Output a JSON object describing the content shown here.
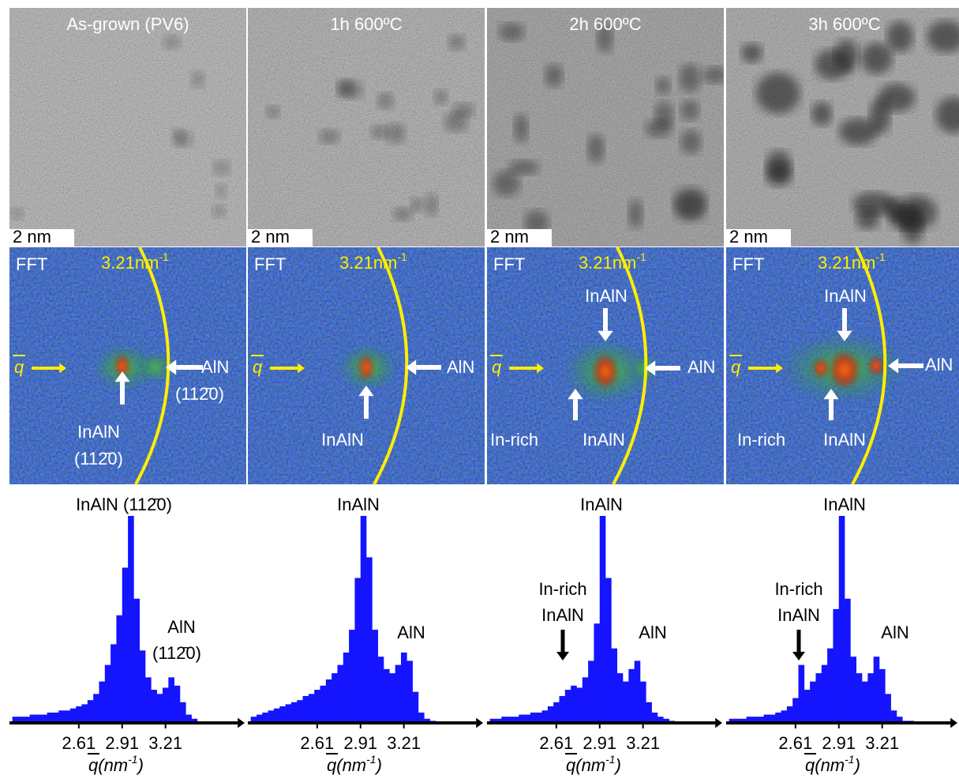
{
  "panels": [
    {
      "title": "As-grown (PV6)",
      "scale_bar": "2 nm",
      "fft_label": "FFT",
      "ring_label": "3.21nm",
      "ring_label_sup": "-1",
      "q_label": "q",
      "fft_annotations": [
        "AlN",
        "(112̄0)",
        "InAlN",
        "(112̄0)"
      ]
    },
    {
      "title": "1h 600ºC",
      "scale_bar": "2 nm",
      "fft_label": "FFT",
      "ring_label": "3.21nm",
      "ring_label_sup": "-1",
      "q_label": "q",
      "fft_annotations": [
        "AlN",
        "InAlN"
      ]
    },
    {
      "title": "2h 600ºC",
      "scale_bar": "2 nm",
      "fft_label": "FFT",
      "ring_label": "3.21nm",
      "ring_label_sup": "-1",
      "q_label": "q",
      "fft_annotations": [
        "InAlN",
        "AlN",
        "In-rich",
        "InAlN"
      ]
    },
    {
      "title": "3h 600ºC",
      "scale_bar": "2 nm",
      "fft_label": "FFT",
      "ring_label": "3.21nm",
      "ring_label_sup": "-1",
      "q_label": "q",
      "fft_annotations": [
        "InAlN",
        "AlN",
        "In-rich",
        "InAlN"
      ]
    }
  ],
  "chart_data": [
    {
      "type": "histogram",
      "color": "#1414ff",
      "annotations": [
        "InAlN (112̄0)",
        "AlN",
        "(112̄0)"
      ],
      "xlabel": [
        "q",
        "(nm",
        "-1",
        ")"
      ],
      "xlim": [
        2.13,
        3.72
      ],
      "xticks": [
        2.61,
        2.91,
        3.21
      ],
      "ylim": [
        0,
        100
      ],
      "bins": [
        2.15,
        2.19,
        2.23,
        2.27,
        2.31,
        2.35,
        2.39,
        2.43,
        2.47,
        2.51,
        2.55,
        2.59,
        2.63,
        2.67,
        2.71,
        2.75,
        2.79,
        2.83,
        2.87,
        2.91,
        2.95,
        2.99,
        3.03,
        3.07,
        3.11,
        3.15,
        3.19,
        3.23,
        3.27,
        3.31,
        3.35,
        3.39,
        3.43
      ],
      "values": [
        3,
        3,
        3,
        4,
        4,
        4,
        5,
        5,
        6,
        6,
        7,
        8,
        9,
        11,
        14,
        20,
        28,
        38,
        52,
        75,
        100,
        60,
        35,
        22,
        16,
        14,
        17,
        22,
        18,
        10,
        4,
        2
      ]
    },
    {
      "type": "histogram",
      "color": "#1414ff",
      "annotations": [
        "InAlN",
        "AlN"
      ],
      "xlabel": [
        "q",
        "(nm",
        "-1",
        ")"
      ],
      "xlim": [
        2.13,
        3.72
      ],
      "xticks": [
        2.61,
        2.91,
        3.21
      ],
      "ylim": [
        0,
        100
      ],
      "bins": [
        2.15,
        2.19,
        2.23,
        2.27,
        2.31,
        2.35,
        2.39,
        2.43,
        2.47,
        2.51,
        2.55,
        2.59,
        2.63,
        2.67,
        2.71,
        2.75,
        2.79,
        2.83,
        2.87,
        2.91,
        2.95,
        2.99,
        3.03,
        3.07,
        3.11,
        3.15,
        3.19,
        3.23,
        3.27,
        3.31,
        3.35,
        3.39,
        3.43
      ],
      "values": [
        3,
        4,
        5,
        6,
        7,
        8,
        9,
        10,
        11,
        13,
        14,
        16,
        18,
        21,
        24,
        28,
        34,
        45,
        70,
        100,
        80,
        45,
        32,
        26,
        24,
        28,
        34,
        30,
        15,
        5,
        2,
        1
      ]
    },
    {
      "type": "histogram",
      "color": "#1414ff",
      "annotations": [
        "InAlN",
        "In-rich",
        "InAlN",
        "AlN"
      ],
      "xlabel": [
        "q",
        "(nm",
        "-1",
        ")"
      ],
      "xlim": [
        2.13,
        3.72
      ],
      "xticks": [
        2.61,
        2.91,
        3.21
      ],
      "ylim": [
        0,
        100
      ],
      "bins": [
        2.15,
        2.19,
        2.23,
        2.27,
        2.31,
        2.35,
        2.39,
        2.43,
        2.47,
        2.51,
        2.55,
        2.59,
        2.63,
        2.67,
        2.71,
        2.75,
        2.79,
        2.83,
        2.87,
        2.91,
        2.95,
        2.99,
        3.03,
        3.07,
        3.11,
        3.15,
        3.19,
        3.23,
        3.27,
        3.31,
        3.35,
        3.39,
        3.43
      ],
      "values": [
        2,
        2,
        3,
        3,
        3,
        4,
        4,
        5,
        5,
        6,
        8,
        10,
        13,
        16,
        18,
        17,
        22,
        30,
        48,
        100,
        70,
        36,
        24,
        20,
        26,
        30,
        20,
        10,
        5,
        3,
        2,
        1
      ]
    },
    {
      "type": "histogram",
      "color": "#1414ff",
      "annotations": [
        "InAlN",
        "In-rich",
        "InAlN",
        "AlN"
      ],
      "xlabel": [
        "q",
        "(nm",
        "-1",
        ")"
      ],
      "xlim": [
        2.13,
        3.72
      ],
      "xticks": [
        2.61,
        2.91,
        3.21
      ],
      "ylim": [
        0,
        100
      ],
      "bins": [
        2.15,
        2.19,
        2.23,
        2.27,
        2.31,
        2.35,
        2.39,
        2.43,
        2.47,
        2.51,
        2.55,
        2.59,
        2.63,
        2.67,
        2.71,
        2.75,
        2.79,
        2.83,
        2.87,
        2.91,
        2.95,
        2.99,
        3.03,
        3.07,
        3.11,
        3.15,
        3.19,
        3.23,
        3.27,
        3.31,
        3.35,
        3.39,
        3.43
      ],
      "values": [
        2,
        2,
        2,
        3,
        3,
        3,
        4,
        4,
        5,
        6,
        8,
        12,
        28,
        16,
        20,
        24,
        28,
        36,
        55,
        100,
        60,
        32,
        24,
        20,
        24,
        32,
        26,
        14,
        6,
        3,
        1,
        1
      ]
    }
  ]
}
